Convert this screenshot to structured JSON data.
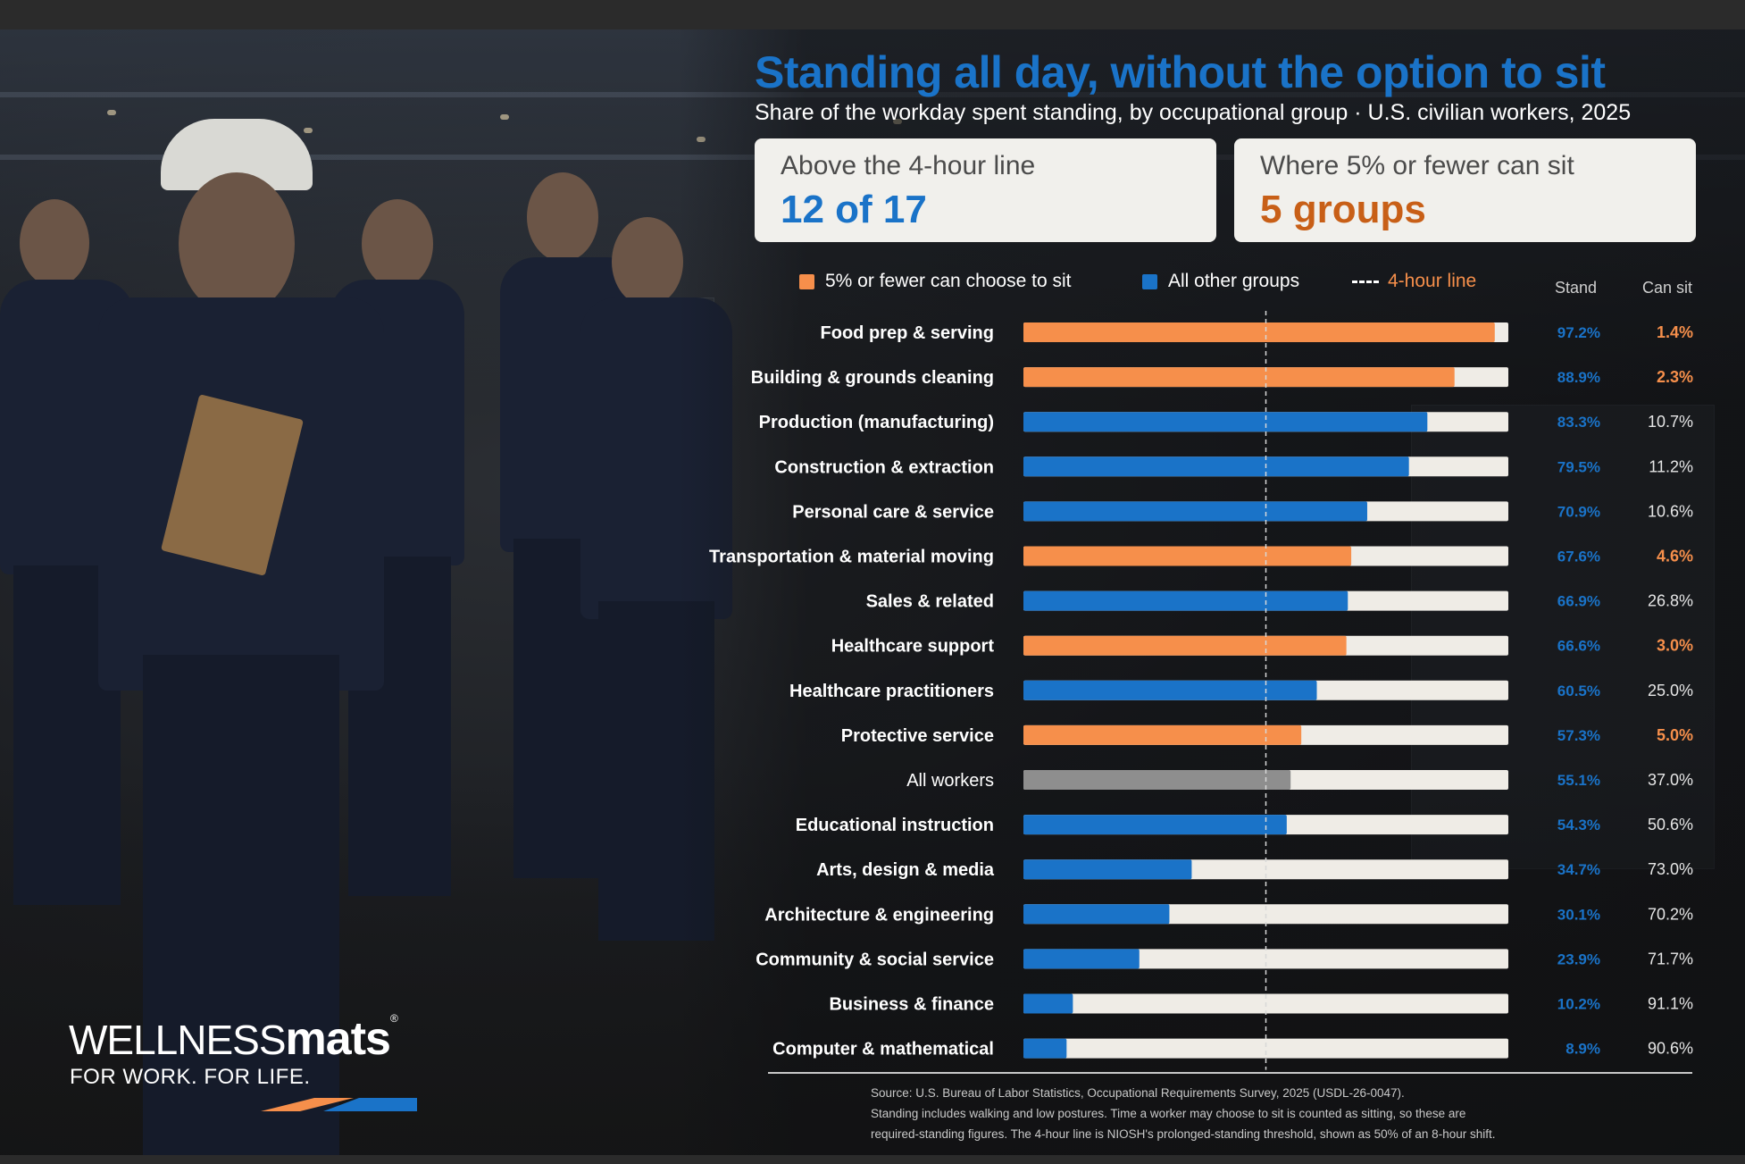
{
  "title": "Standing all day, without the option to sit",
  "subtitle": "Share of the workday spent standing, by occupational group · U.S. civilian workers, 2025",
  "kpis": [
    {
      "label": "Above the 4-hour line",
      "value": "12 of 17"
    },
    {
      "label": "Where 5% or fewer can sit",
      "value": "5 groups"
    }
  ],
  "legend": {
    "low_sit": "5% or fewer can choose to sit",
    "other": "All other groups",
    "threshold": "4-hour line"
  },
  "columns": {
    "stand": "Stand",
    "can_sit": "Can sit"
  },
  "colors": {
    "low_sit": "#f68f4b",
    "other": "#1a73c8",
    "all_workers": "#8e8e8e",
    "track": "#efece6",
    "title": "#1a73c8",
    "sit_highlight": "#f68f4b",
    "kpi2": "#c85f17"
  },
  "chart_data": {
    "type": "bar",
    "orientation": "horizontal",
    "stacked_to": 100,
    "xlim": [
      0,
      100
    ],
    "reference_line": {
      "label": "4-hour line",
      "value": 50
    },
    "categories": [
      "Food prep & serving",
      "Building & grounds cleaning",
      "Production (manufacturing)",
      "Construction & extraction",
      "Personal care & service",
      "Transportation & material moving",
      "Sales & related",
      "Healthcare support",
      "Healthcare practitioners",
      "Protective service",
      "All workers",
      "Educational instruction",
      "Arts, design & media",
      "Architecture & engineering",
      "Community & social service",
      "Business & finance",
      "Computer & mathematical"
    ],
    "series": [
      {
        "name": "Stand",
        "values": [
          97.2,
          88.9,
          83.3,
          79.5,
          70.9,
          67.6,
          66.9,
          66.6,
          60.5,
          57.3,
          55.1,
          54.3,
          34.7,
          30.1,
          23.9,
          10.2,
          8.9
        ]
      },
      {
        "name": "Can sit",
        "values": [
          1.4,
          2.3,
          10.7,
          11.2,
          10.6,
          4.6,
          26.8,
          3.0,
          25.0,
          5.0,
          37.0,
          50.6,
          73.0,
          70.2,
          71.7,
          91.1,
          90.6
        ]
      }
    ],
    "stand_labels": [
      "97.2%",
      "88.9%",
      "83.3%",
      "79.5%",
      "70.9%",
      "67.6%",
      "66.9%",
      "66.6%",
      "60.5%",
      "57.3%",
      "55.1%",
      "54.3%",
      "34.7%",
      "30.1%",
      "23.9%",
      "10.2%",
      "8.9%"
    ],
    "sit_labels": [
      "1.4%",
      "2.3%",
      "10.7%",
      "11.2%",
      "10.6%",
      "4.6%",
      "26.8%",
      "3.0%",
      "25.0%",
      "5.0%",
      "37.0%",
      "50.6%",
      "73.0%",
      "70.2%",
      "71.7%",
      "91.1%",
      "90.6%"
    ],
    "group": [
      "low_sit",
      "low_sit",
      "other",
      "other",
      "other",
      "low_sit",
      "other",
      "low_sit",
      "other",
      "low_sit",
      "all",
      "other",
      "other",
      "other",
      "other",
      "other",
      "other"
    ]
  },
  "footer": {
    "source": "Source: U.S. Bureau of Labor Statistics, Occupational Requirements Survey, 2025 (USDL-26-0047).",
    "note_1": "Standing includes walking and low postures. Time a worker may choose to sit is counted as sitting, so these are",
    "note_2": "required-standing figures. The 4-hour line is NIOSH's prolonged-standing threshold, shown as 50% of an 8-hour shift."
  },
  "logo": {
    "wordmark_a": "WELLNESS",
    "wordmark_b": "mats",
    "tagline": "FOR WORK. FOR LIFE."
  }
}
